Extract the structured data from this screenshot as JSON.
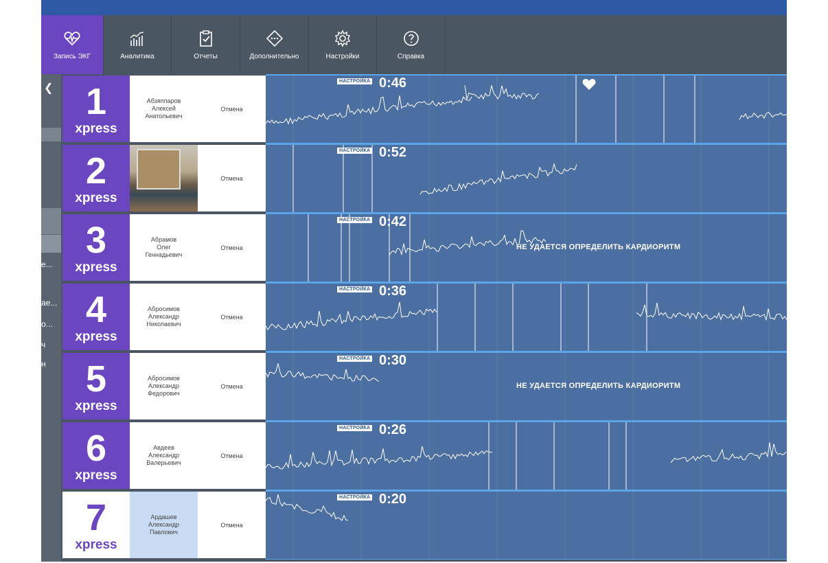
{
  "toolbar": [
    {
      "label": "Запись ЭКГ",
      "icon": "ecg-heart-icon",
      "active": true
    },
    {
      "label": "Аналитика",
      "icon": "analytics-chart-icon"
    },
    {
      "label": "Отчеты",
      "icon": "clipboard-check-icon"
    },
    {
      "label": "Дополнительно",
      "icon": "diamond-more-icon"
    },
    {
      "label": "Настройки",
      "icon": "gear-icon"
    },
    {
      "label": "Справка",
      "icon": "help-circle-icon"
    }
  ],
  "sidebar": {
    "snippets": [
      "е...",
      "ае...",
      "о...",
      "ч",
      "н"
    ]
  },
  "rows": [
    {
      "number": "1",
      "brand": "xpress",
      "name": "Абзяппаров\nАлексей\nАнатольевич",
      "cancel": "Отмена",
      "tag": "НАСТРОЙКА",
      "timer": "0:46",
      "message": "",
      "heart": true
    },
    {
      "number": "2",
      "brand": "xpress",
      "name": "",
      "photo": true,
      "cancel": "Отмена",
      "tag": "НАСТРОЙКА",
      "timer": "0:52",
      "message": ""
    },
    {
      "number": "3",
      "brand": "xpress",
      "name": "Абрамов\nОлег\nГеннадьевич",
      "cancel": "Отмена",
      "tag": "НАСТРОЙКА",
      "timer": "0:42",
      "message": "НЕ УДАЕТСЯ ОПРЕДЕЛИТЬ КАРДИОРИТМ"
    },
    {
      "number": "4",
      "brand": "xpress",
      "name": "Абросимов\nАлександр\nНиколаевич",
      "cancel": "Отмена",
      "tag": "НАСТРОЙКА",
      "timer": "0:36",
      "message": ""
    },
    {
      "number": "5",
      "brand": "xpress",
      "name": "Абросимов\nАлександр\nФедорович",
      "cancel": "Отмена",
      "tag": "НАСТРОЙКА",
      "timer": "0:30",
      "message": "НЕ УДАЕТСЯ ОПРЕДЕЛИТЬ КАРДИОРИТМ"
    },
    {
      "number": "6",
      "brand": "xpress",
      "name": "Авдеев\nАлександр\nВалерьевич",
      "cancel": "Отмена",
      "tag": "НАСТРОЙКА",
      "timer": "0:26",
      "message": ""
    },
    {
      "number": "7",
      "brand": "xpress",
      "name": "Ардашев\nАлександр\nПавлович",
      "cancel": "Отмена",
      "tag": "НАСТРОЙКА",
      "timer": "0:20",
      "message": "",
      "selected": true
    }
  ],
  "colors": {
    "accent": "#6b46c1",
    "ecg_bg": "#4a6fa0",
    "toolbar_bg": "#4b5663",
    "row_border": "#5aa6e8"
  }
}
